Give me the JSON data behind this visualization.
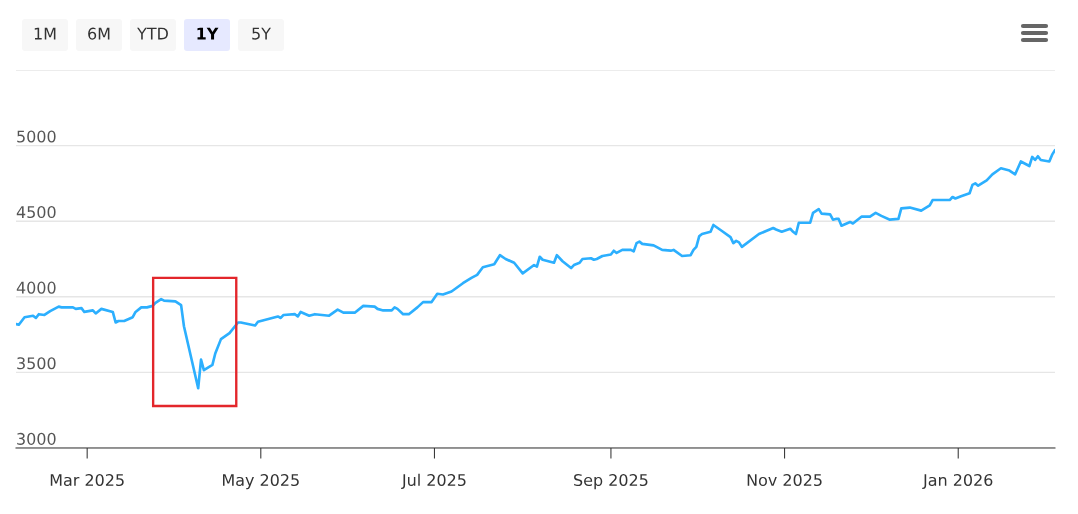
{
  "chart_data": {
    "type": "line",
    "annotations": [
      "1M",
      "6M",
      "YTD",
      "1Y",
      "5Y"
    ],
    "x": [
      "2025-02-04",
      "2025-02-05",
      "2025-02-07",
      "2025-02-10",
      "2025-02-11",
      "2025-02-12",
      "2025-02-14",
      "2025-02-16",
      "2025-02-19",
      "2025-02-20",
      "2025-02-24",
      "2025-02-25",
      "2025-02-27",
      "2025-02-28",
      "2025-03-03",
      "2025-03-04",
      "2025-03-06",
      "2025-03-10",
      "2025-03-11",
      "2025-03-12",
      "2025-03-14",
      "2025-03-17",
      "2025-03-18",
      "2025-03-20",
      "2025-03-22",
      "2025-03-24",
      "2025-03-25",
      "2025-03-27",
      "2025-03-28",
      "2025-04-01",
      "2025-04-03",
      "2025-04-04",
      "2025-04-09",
      "2025-04-10",
      "2025-04-11",
      "2025-04-14",
      "2025-04-15",
      "2025-04-17",
      "2025-04-20",
      "2025-04-23",
      "2025-04-24",
      "2025-04-29",
      "2025-04-30",
      "2025-05-03",
      "2025-05-06",
      "2025-05-07",
      "2025-05-08",
      "2025-05-09",
      "2025-05-13",
      "2025-05-14",
      "2025-05-15",
      "2025-05-18",
      "2025-05-20",
      "2025-05-25",
      "2025-05-28",
      "2025-05-30",
      "2025-06-03",
      "2025-06-06",
      "2025-06-10",
      "2025-06-11",
      "2025-06-13",
      "2025-06-16",
      "2025-06-17",
      "2025-06-18",
      "2025-06-20",
      "2025-06-22",
      "2025-06-25",
      "2025-06-27",
      "2025-06-30",
      "2025-07-02",
      "2025-07-04",
      "2025-07-07",
      "2025-07-11",
      "2025-07-14",
      "2025-07-16",
      "2025-07-18",
      "2025-07-21",
      "2025-07-22",
      "2025-07-24",
      "2025-07-26",
      "2025-07-29",
      "2025-08-01",
      "2025-08-05",
      "2025-08-06",
      "2025-08-07",
      "2025-08-08",
      "2025-08-12",
      "2025-08-13",
      "2025-08-15",
      "2025-08-18",
      "2025-08-19",
      "2025-08-21",
      "2025-08-22",
      "2025-08-25",
      "2025-08-26",
      "2025-08-27",
      "2025-08-29",
      "2025-09-01",
      "2025-09-02",
      "2025-09-03",
      "2025-09-05",
      "2025-09-08",
      "2025-09-09",
      "2025-09-10",
      "2025-09-11",
      "2025-09-12",
      "2025-09-16",
      "2025-09-19",
      "2025-09-22",
      "2025-09-23",
      "2025-09-26",
      "2025-09-29",
      "2025-09-30",
      "2025-10-01",
      "2025-10-02",
      "2025-10-03",
      "2025-10-06",
      "2025-10-07",
      "2025-10-10",
      "2025-10-13",
      "2025-10-14",
      "2025-10-15",
      "2025-10-16",
      "2025-10-17",
      "2025-10-23",
      "2025-10-28",
      "2025-10-29",
      "2025-10-31",
      "2025-11-03",
      "2025-11-04",
      "2025-11-05",
      "2025-11-06",
      "2025-11-10",
      "2025-11-11",
      "2025-11-13",
      "2025-11-14",
      "2025-11-17",
      "2025-11-18",
      "2025-11-19",
      "2025-11-20",
      "2025-11-21",
      "2025-11-24",
      "2025-11-25",
      "2025-11-28",
      "2025-12-01",
      "2025-12-03",
      "2025-12-05",
      "2025-12-08",
      "2025-12-11",
      "2025-12-12",
      "2025-12-15",
      "2025-12-19",
      "2025-12-22",
      "2025-12-23",
      "2025-12-29",
      "2025-12-30",
      "2025-12-31",
      "2026-01-02",
      "2026-01-05",
      "2026-01-06",
      "2026-01-07",
      "2026-01-08",
      "2026-01-11",
      "2026-01-13",
      "2026-01-16",
      "2026-01-19",
      "2026-01-21",
      "2026-01-23",
      "2026-01-26",
      "2026-01-27",
      "2026-01-28",
      "2026-01-29",
      "2026-01-30",
      "2026-02-02",
      "2026-02-03",
      "2026-02-04"
    ],
    "series": [
      {
        "color": "#2caffe",
        "values": [
          3820,
          3815,
          3865,
          3875,
          3860,
          3885,
          3880,
          3905,
          3935,
          3930,
          3930,
          3920,
          3925,
          3900,
          3910,
          3890,
          3920,
          3900,
          3830,
          3840,
          3840,
          3865,
          3900,
          3930,
          3930,
          3940,
          3960,
          3985,
          3975,
          3970,
          3945,
          3805,
          3395,
          3585,
          3515,
          3550,
          3625,
          3720,
          3760,
          3830,
          3830,
          3810,
          3835,
          3850,
          3865,
          3870,
          3860,
          3880,
          3885,
          3870,
          3900,
          3875,
          3885,
          3875,
          3915,
          3895,
          3895,
          3940,
          3935,
          3920,
          3910,
          3910,
          3930,
          3920,
          3885,
          3885,
          3930,
          3965,
          3965,
          4020,
          4015,
          4035,
          4090,
          4125,
          4145,
          4195,
          4210,
          4215,
          4275,
          4250,
          4225,
          4155,
          4210,
          4200,
          4265,
          4245,
          4225,
          4275,
          4235,
          4190,
          4210,
          4225,
          4250,
          4255,
          4245,
          4250,
          4270,
          4280,
          4305,
          4290,
          4310,
          4310,
          4300,
          4355,
          4365,
          4350,
          4340,
          4310,
          4305,
          4310,
          4270,
          4275,
          4310,
          4330,
          4400,
          4415,
          4430,
          4475,
          4435,
          4395,
          4355,
          4370,
          4360,
          4330,
          4415,
          4455,
          4445,
          4430,
          4450,
          4430,
          4415,
          4490,
          4490,
          4555,
          4580,
          4550,
          4545,
          4510,
          4515,
          4515,
          4470,
          4495,
          4485,
          4530,
          4530,
          4555,
          4535,
          4510,
          4515,
          4585,
          4590,
          4570,
          4605,
          4640,
          4640,
          4660,
          4650,
          4665,
          4685,
          4740,
          4750,
          4735,
          4770,
          4810,
          4850,
          4835,
          4810,
          4895,
          4865,
          4925,
          4905,
          4930,
          4905,
          4895,
          4940,
          4970
        ]
      }
    ],
    "xlim": [
      "2025-02-04",
      "2026-02-04"
    ],
    "xticks": [
      {
        "value": "2025-03-01",
        "label": "Mar 2025"
      },
      {
        "value": "2025-05-01",
        "label": "May 2025"
      },
      {
        "value": "2025-07-01",
        "label": "Jul 2025"
      },
      {
        "value": "2025-09-01",
        "label": "Sep 2025"
      },
      {
        "value": "2025-11-01",
        "label": "Nov 2025"
      },
      {
        "value": "2026-01-01",
        "label": "Jan 2026"
      }
    ],
    "ylim": [
      3000,
      5500
    ],
    "yticks": [
      3000,
      3500,
      4000,
      4500,
      5000,
      {
        "value": 5500,
        "label": null
      }
    ],
    "grid": "y"
  }
}
